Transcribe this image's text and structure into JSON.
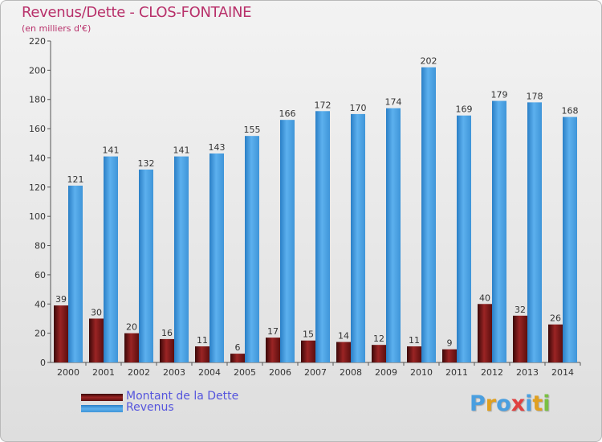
{
  "title": "Revenus/Dette - CLOS-FONTAINE",
  "subtitle": "(en milliers d'€)",
  "colors": {
    "debt": "#7a1414",
    "revenue": "#4a9fe0",
    "title": "#b8306a",
    "legend_text": "#5555dd"
  },
  "legend": {
    "debt_label": "Montant de la Dette",
    "revenue_label": "Revenus"
  },
  "logo": {
    "text": "Proxiti"
  },
  "chart_data": {
    "type": "bar",
    "title": "Revenus/Dette - CLOS-FONTAINE",
    "ylabel": "(en milliers d'€)",
    "categories": [
      "2000",
      "2001",
      "2002",
      "2003",
      "2004",
      "2005",
      "2006",
      "2007",
      "2008",
      "2009",
      "2010",
      "2011",
      "2012",
      "2013",
      "2014"
    ],
    "series": [
      {
        "name": "Montant de la Dette",
        "values": [
          39,
          30,
          20,
          16,
          11,
          6,
          17,
          15,
          14,
          12,
          11,
          9,
          40,
          32,
          26
        ]
      },
      {
        "name": "Revenus",
        "values": [
          121,
          141,
          132,
          141,
          143,
          155,
          166,
          172,
          170,
          174,
          202,
          169,
          179,
          178,
          168
        ]
      }
    ],
    "ylim": [
      0,
      220
    ],
    "yticks": [
      0,
      20,
      40,
      60,
      80,
      100,
      120,
      140,
      160,
      180,
      200,
      220
    ],
    "grid": false,
    "legend_position": "bottom-left"
  }
}
